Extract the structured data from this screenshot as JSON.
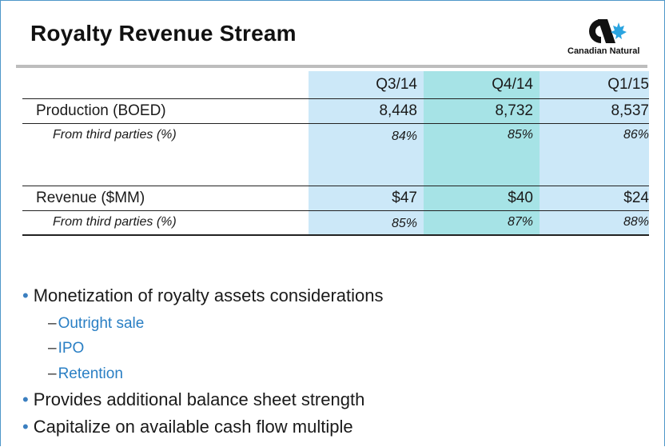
{
  "title": "Royalty Revenue Stream",
  "logo": {
    "text": "Canadian Natural",
    "icon": "canadian-natural-logo"
  },
  "colors": {
    "col_light": "#cce8f8",
    "col_mid": "#a6e3e6",
    "bullet": "#3b7fc0",
    "sub_text": "#2a7fc4"
  },
  "table": {
    "columns": [
      "Q3/14",
      "Q4/14",
      "Q1/15"
    ],
    "rows": [
      {
        "label": "Production (BOED)",
        "values": [
          "8,448",
          "8,732",
          "8,537"
        ]
      },
      {
        "label": "From third parties (%)",
        "values": [
          "84%",
          "85%",
          "86%"
        ]
      },
      {
        "label": "Revenue ($MM)",
        "values": [
          "$47",
          "$40",
          "$24"
        ]
      },
      {
        "label": "From third parties (%)",
        "values": [
          "85%",
          "87%",
          "88%"
        ]
      }
    ]
  },
  "bullets": [
    {
      "text": "Monetization of royalty assets considerations",
      "subs": [
        "Outright sale",
        "IPO",
        "Retention"
      ]
    },
    {
      "text": "Provides additional balance sheet strength",
      "subs": []
    },
    {
      "text": "Capitalize on available cash flow multiple",
      "subs": []
    }
  ],
  "glyphs": {
    "bullet": "•",
    "dash": "–"
  }
}
